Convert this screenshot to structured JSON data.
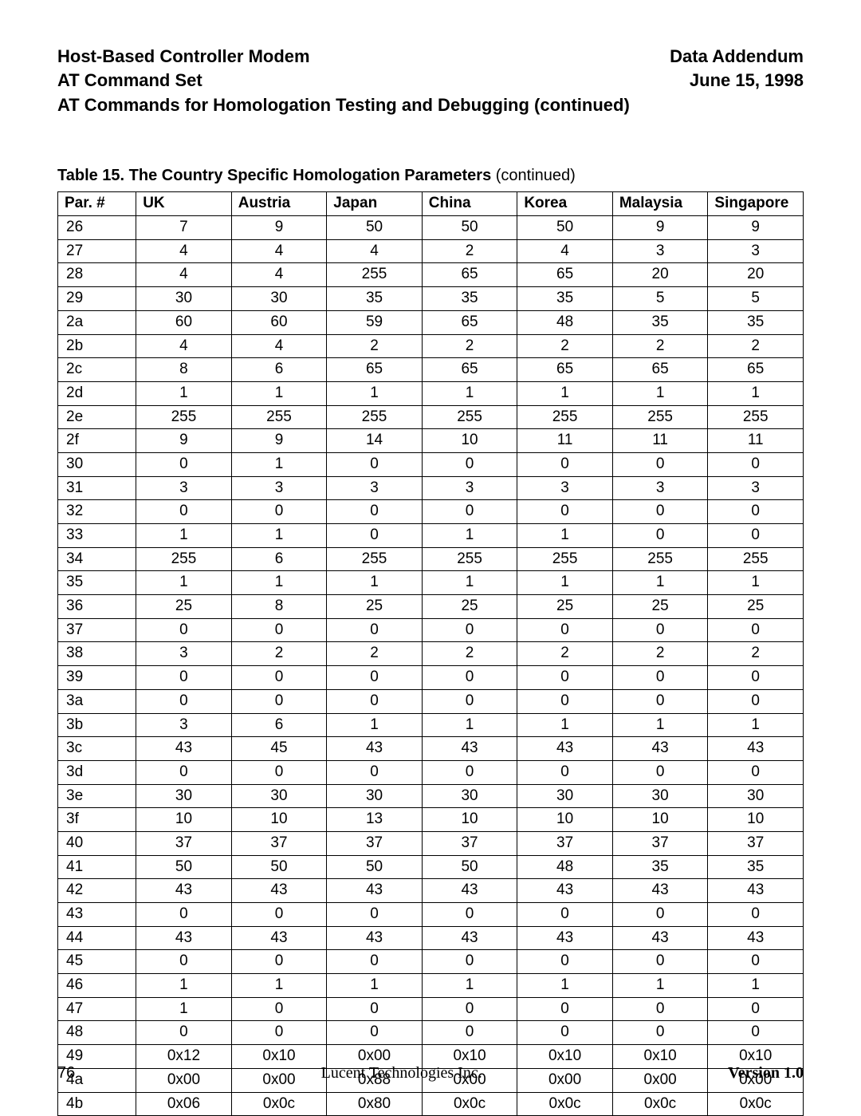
{
  "header": {
    "left1": "Host-Based Controller Modem",
    "left2": "AT Command Set",
    "right1": "Data Addendum",
    "right2": "June 15, 1998"
  },
  "section_title": "AT Commands for Homologation Testing and Debugging (continued)",
  "table_caption_bold": "Table 15.  The Country Specific Homologation Parameters",
  "table_caption_rest": " (continued)",
  "columns": [
    "Par. #",
    "UK",
    "Austria",
    "Japan",
    "China",
    "Korea",
    "Malaysia",
    "Singapore"
  ],
  "rows": [
    [
      "26",
      "7",
      "9",
      "50",
      "50",
      "50",
      "9",
      "9"
    ],
    [
      "27",
      "4",
      "4",
      "4",
      "2",
      "4",
      "3",
      "3"
    ],
    [
      "28",
      "4",
      "4",
      "255",
      "65",
      "65",
      "20",
      "20"
    ],
    [
      "29",
      "30",
      "30",
      "35",
      "35",
      "35",
      "5",
      "5"
    ],
    [
      "2a",
      "60",
      "60",
      "59",
      "65",
      "48",
      "35",
      "35"
    ],
    [
      "2b",
      "4",
      "4",
      "2",
      "2",
      "2",
      "2",
      "2"
    ],
    [
      "2c",
      "8",
      "6",
      "65",
      "65",
      "65",
      "65",
      "65"
    ],
    [
      "2d",
      "1",
      "1",
      "1",
      "1",
      "1",
      "1",
      "1"
    ],
    [
      "2e",
      "255",
      "255",
      "255",
      "255",
      "255",
      "255",
      "255"
    ],
    [
      "2f",
      "9",
      "9",
      "14",
      "10",
      "11",
      "11",
      "11"
    ],
    [
      "30",
      "0",
      "1",
      "0",
      "0",
      "0",
      "0",
      "0"
    ],
    [
      "31",
      "3",
      "3",
      "3",
      "3",
      "3",
      "3",
      "3"
    ],
    [
      "32",
      "0",
      "0",
      "0",
      "0",
      "0",
      "0",
      "0"
    ],
    [
      "33",
      "1",
      "1",
      "0",
      "1",
      "1",
      "0",
      "0"
    ],
    [
      "34",
      "255",
      "6",
      "255",
      "255",
      "255",
      "255",
      "255"
    ],
    [
      "35",
      "1",
      "1",
      "1",
      "1",
      "1",
      "1",
      "1"
    ],
    [
      "36",
      "25",
      "8",
      "25",
      "25",
      "25",
      "25",
      "25"
    ],
    [
      "37",
      "0",
      "0",
      "0",
      "0",
      "0",
      "0",
      "0"
    ],
    [
      "38",
      "3",
      "2",
      "2",
      "2",
      "2",
      "2",
      "2"
    ],
    [
      "39",
      "0",
      "0",
      "0",
      "0",
      "0",
      "0",
      "0"
    ],
    [
      "3a",
      "0",
      "0",
      "0",
      "0",
      "0",
      "0",
      "0"
    ],
    [
      "3b",
      "3",
      "6",
      "1",
      "1",
      "1",
      "1",
      "1"
    ],
    [
      "3c",
      "43",
      "45",
      "43",
      "43",
      "43",
      "43",
      "43"
    ],
    [
      "3d",
      "0",
      "0",
      "0",
      "0",
      "0",
      "0",
      "0"
    ],
    [
      "3e",
      "30",
      "30",
      "30",
      "30",
      "30",
      "30",
      "30"
    ],
    [
      "3f",
      "10",
      "10",
      "13",
      "10",
      "10",
      "10",
      "10"
    ],
    [
      "40",
      "37",
      "37",
      "37",
      "37",
      "37",
      "37",
      "37"
    ],
    [
      "41",
      "50",
      "50",
      "50",
      "50",
      "48",
      "35",
      "35"
    ],
    [
      "42",
      "43",
      "43",
      "43",
      "43",
      "43",
      "43",
      "43"
    ],
    [
      "43",
      "0",
      "0",
      "0",
      "0",
      "0",
      "0",
      "0"
    ],
    [
      "44",
      "43",
      "43",
      "43",
      "43",
      "43",
      "43",
      "43"
    ],
    [
      "45",
      "0",
      "0",
      "0",
      "0",
      "0",
      "0",
      "0"
    ],
    [
      "46",
      "1",
      "1",
      "1",
      "1",
      "1",
      "1",
      "1"
    ],
    [
      "47",
      "1",
      "0",
      "0",
      "0",
      "0",
      "0",
      "0"
    ],
    [
      "48",
      "0",
      "0",
      "0",
      "0",
      "0",
      "0",
      "0"
    ],
    [
      "49",
      "0x12",
      "0x10",
      "0x00",
      "0x10",
      "0x10",
      "0x10",
      "0x10"
    ],
    [
      "4a",
      "0x00",
      "0x00",
      "0x88",
      "0x00",
      "0x00",
      "0x00",
      "0x00"
    ],
    [
      "4b",
      "0x06",
      "0x0c",
      "0x80",
      "0x0c",
      "0x0c",
      "0x0c",
      "0x0c"
    ]
  ],
  "footer": {
    "page": "76",
    "company": "Lucent Technologies Inc.",
    "version": "Version 1.0"
  }
}
